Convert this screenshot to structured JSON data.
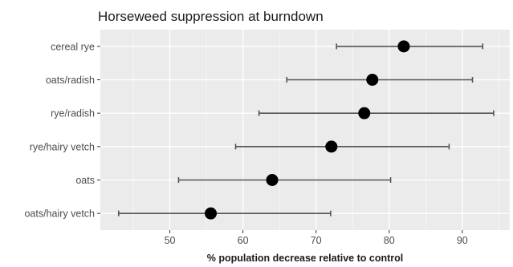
{
  "chart_data": {
    "type": "scatter",
    "title": "Horseweed suppression at burndown",
    "xlabel": "% population decrease relative to control",
    "ylabel": "",
    "xlim": [
      40.5,
      96.5
    ],
    "x_ticks": [
      50,
      60,
      70,
      80,
      90
    ],
    "x_tick_labels": [
      "50",
      "60",
      "70",
      "80",
      "90"
    ],
    "grid": true,
    "legend": "none",
    "categories": [
      "cereal rye",
      "oats/radish",
      "rye/radish",
      "rye/hairy vetch",
      "oats",
      "oats/hairy vetch"
    ],
    "values": [
      82.0,
      77.7,
      76.6,
      72.1,
      64.0,
      55.6
    ],
    "lower": [
      72.8,
      66.0,
      62.2,
      59.0,
      51.2,
      43.0
    ],
    "upper": [
      92.8,
      91.4,
      94.3,
      88.2,
      80.2,
      72.0
    ],
    "colors": {
      "panel": "#ebebeb",
      "grid_major": "#ffffff",
      "point": "#000000",
      "errorbar": "#545454"
    }
  }
}
